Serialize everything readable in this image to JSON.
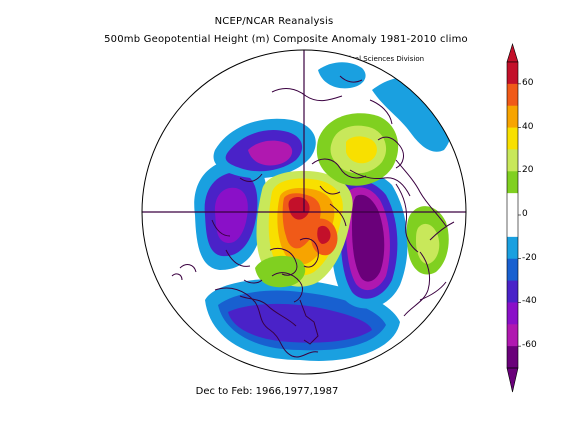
{
  "titles": {
    "line1": "NCEP/NCAR Reanalysis",
    "line2": "500mb Geopotential Height (m) Composite Anomaly 1981-2010 climo",
    "credit": "NOAA/ESRL Physical Sciences Division",
    "footer": "Dec to Feb: 1966,1977,1987"
  },
  "colorbar": {
    "tick_labels": [
      "60",
      "40",
      "20",
      "0",
      "-20",
      "-40",
      "-60"
    ],
    "colors": [
      "#c3102a",
      "#f05a18",
      "#f7a400",
      "#f8e000",
      "#c8e85a",
      "#80d020",
      "#ffffff",
      "#ffffff",
      "#1aa0e0",
      "#1860d0",
      "#4a22c8",
      "#8a10c8",
      "#b018b0",
      "#6a007a"
    ]
  },
  "map": {
    "projection": "polar-stereographic",
    "colors": {
      "dark-purple": "#6a007a",
      "magenta": "#b018b0",
      "violet": "#8a10c8",
      "indigo": "#4a22c8",
      "blue": "#1860d0",
      "light-blue": "#1aa0e0",
      "green": "#80d020",
      "yellow-green": "#c8e85a",
      "yellow": "#f8e000",
      "orange": "#f7a400",
      "dark-orange": "#f05a18",
      "red": "#c3102a",
      "coast": "#3a0040"
    }
  }
}
